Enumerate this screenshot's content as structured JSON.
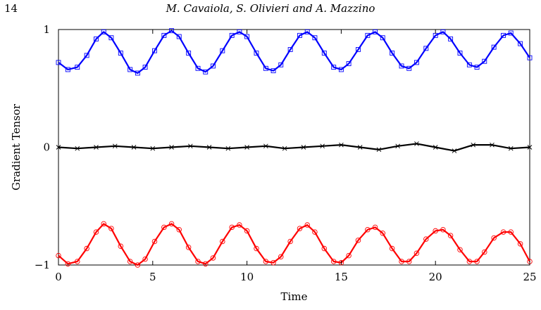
{
  "page": {
    "number": "14",
    "running_header": "M. Cavaiola, S. Olivieri and A. Mazzino"
  },
  "chart_data": {
    "type": "line",
    "title": "",
    "xlabel": "Time",
    "ylabel": "Gradient Tensor",
    "xlim": [
      0,
      25
    ],
    "ylim": [
      -1,
      1
    ],
    "x_ticks": [
      0,
      5,
      10,
      15,
      20,
      25
    ],
    "x_tick_labels": [
      "0",
      "5",
      "10",
      "15",
      "20",
      "25"
    ],
    "y_ticks": [
      -1,
      0,
      1
    ],
    "y_tick_labels": [
      "−1",
      "0",
      "1"
    ],
    "grid": false,
    "legend": "none",
    "series": [
      {
        "color": "#0000ff",
        "style": "solid line with square markers",
        "marker": "square",
        "x": [
          0,
          0.5,
          1.0,
          1.5,
          2.0,
          2.4,
          2.8,
          3.3,
          3.8,
          4.2,
          4.6,
          5.1,
          5.6,
          6.0,
          6.4,
          6.9,
          7.4,
          7.8,
          8.2,
          8.7,
          9.2,
          9.6,
          10.0,
          10.5,
          11.0,
          11.4,
          11.8,
          12.3,
          12.8,
          13.2,
          13.6,
          14.1,
          14.6,
          15.0,
          15.4,
          15.9,
          16.4,
          16.8,
          17.2,
          17.7,
          18.2,
          18.6,
          19.0,
          19.5,
          20.0,
          20.4,
          20.8,
          21.3,
          21.8,
          22.2,
          22.6,
          23.1,
          23.6,
          24.0,
          24.5,
          25.0
        ],
        "values": [
          0.72,
          0.66,
          0.68,
          0.78,
          0.92,
          0.98,
          0.93,
          0.8,
          0.66,
          0.63,
          0.68,
          0.82,
          0.95,
          0.99,
          0.94,
          0.8,
          0.67,
          0.64,
          0.69,
          0.82,
          0.95,
          0.98,
          0.94,
          0.8,
          0.67,
          0.65,
          0.7,
          0.83,
          0.95,
          0.98,
          0.93,
          0.8,
          0.68,
          0.66,
          0.71,
          0.83,
          0.95,
          0.98,
          0.93,
          0.8,
          0.69,
          0.67,
          0.72,
          0.84,
          0.95,
          0.98,
          0.92,
          0.8,
          0.7,
          0.68,
          0.73,
          0.85,
          0.95,
          0.97,
          0.88,
          0.76
        ]
      },
      {
        "color": "#000000",
        "style": "solid line with x markers",
        "marker": "cross",
        "x": [
          0,
          1,
          2,
          3,
          4,
          5,
          6,
          7,
          8,
          9,
          10,
          11,
          12,
          13,
          14,
          15,
          16,
          17,
          18,
          19,
          20,
          21,
          22,
          23,
          24,
          25
        ],
        "values": [
          0.0,
          -0.01,
          0.0,
          0.01,
          0.0,
          -0.01,
          0.0,
          0.01,
          0.0,
          -0.01,
          0.0,
          0.01,
          -0.01,
          0.0,
          0.01,
          0.02,
          0.0,
          -0.02,
          0.01,
          0.03,
          0.0,
          -0.03,
          0.02,
          0.02,
          -0.01,
          0.0
        ]
      },
      {
        "color": "#ff0000",
        "style": "solid line with circle markers",
        "marker": "circle",
        "x": [
          0,
          0.5,
          1.0,
          1.5,
          2.0,
          2.4,
          2.8,
          3.3,
          3.8,
          4.2,
          4.6,
          5.1,
          5.6,
          6.0,
          6.4,
          6.9,
          7.4,
          7.8,
          8.2,
          8.7,
          9.2,
          9.6,
          10.0,
          10.5,
          11.0,
          11.4,
          11.8,
          12.3,
          12.8,
          13.2,
          13.6,
          14.1,
          14.6,
          15.0,
          15.4,
          15.9,
          16.4,
          16.8,
          17.2,
          17.7,
          18.2,
          18.6,
          19.0,
          19.5,
          20.0,
          20.4,
          20.8,
          21.3,
          21.8,
          22.2,
          22.6,
          23.1,
          23.6,
          24.0,
          24.5,
          25.0
        ],
        "values": [
          -0.92,
          -0.99,
          -0.97,
          -0.86,
          -0.72,
          -0.65,
          -0.69,
          -0.84,
          -0.97,
          -1.0,
          -0.95,
          -0.8,
          -0.68,
          -0.65,
          -0.7,
          -0.85,
          -0.97,
          -0.99,
          -0.94,
          -0.8,
          -0.68,
          -0.66,
          -0.71,
          -0.86,
          -0.97,
          -0.98,
          -0.93,
          -0.8,
          -0.69,
          -0.66,
          -0.72,
          -0.86,
          -0.97,
          -0.98,
          -0.92,
          -0.79,
          -0.7,
          -0.68,
          -0.73,
          -0.86,
          -0.97,
          -0.97,
          -0.9,
          -0.78,
          -0.71,
          -0.7,
          -0.75,
          -0.87,
          -0.97,
          -0.97,
          -0.89,
          -0.77,
          -0.72,
          -0.72,
          -0.82,
          -0.97
        ]
      }
    ]
  }
}
